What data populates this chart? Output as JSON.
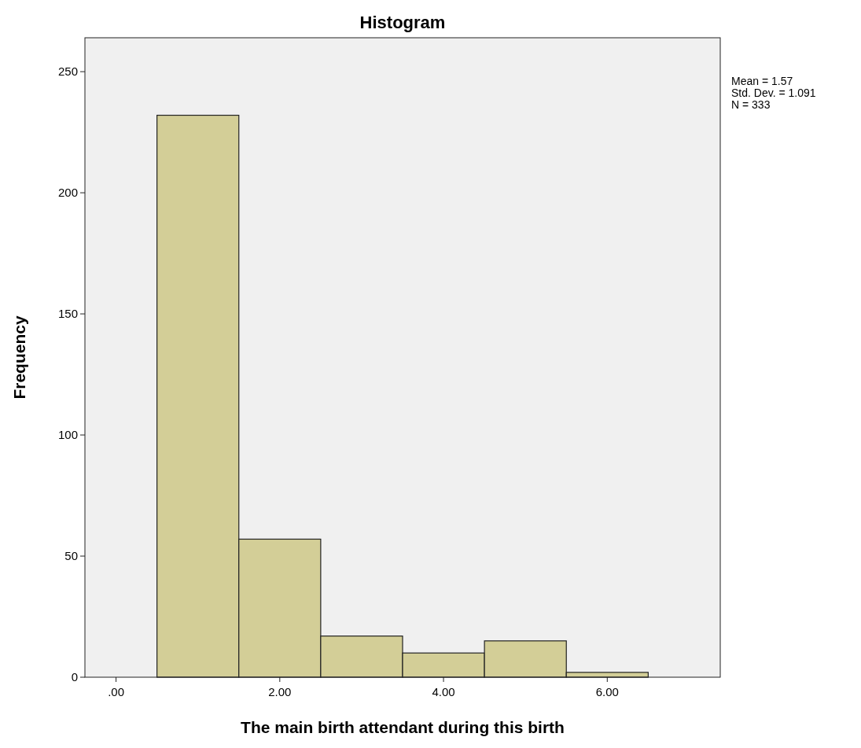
{
  "chart_data": {
    "type": "histogram",
    "title": "Histogram",
    "xlabel": "The main birth attendant during this birth",
    "ylabel": "Frequency",
    "bins": [
      0.5,
      1.5,
      2.5,
      3.5,
      4.5,
      5.5,
      6.5
    ],
    "values": [
      232,
      57,
      17,
      10,
      15,
      2
    ],
    "color": "#d3ce97",
    "xlim": [
      -0.38,
      7.38
    ],
    "xticks": [
      {
        "value": 0,
        "label": ".00"
      },
      {
        "value": 2,
        "label": "2.00"
      },
      {
        "value": 4,
        "label": "4.00"
      },
      {
        "value": 6,
        "label": "6.00"
      }
    ],
    "ylim": [
      0,
      264
    ],
    "yticks": [
      0,
      50,
      100,
      150,
      200,
      250
    ],
    "grid": false,
    "annotations": [
      "Mean = 1.57",
      "Std. Dev. = 1.091",
      "N = 333"
    ]
  }
}
